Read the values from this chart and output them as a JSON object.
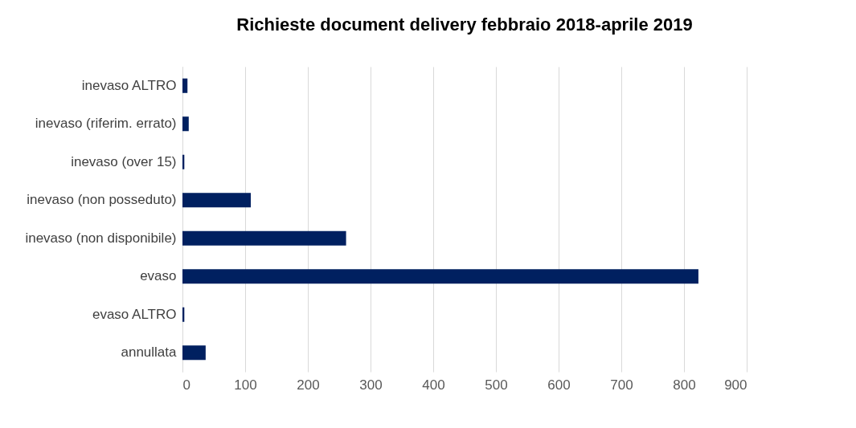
{
  "chart_data": {
    "type": "bar",
    "orientation": "horizontal",
    "title": "Richieste document delivery febbraio 2018-aprile 2019",
    "categories": [
      "inevaso ALTRO",
      "inevaso (riferim. errato)",
      "inevaso (over 15)",
      "inevaso (non posseduto)",
      "inevaso (non disponibile)",
      "evaso",
      "evaso ALTRO",
      "annullata"
    ],
    "values": [
      8,
      10,
      3,
      109,
      261,
      823,
      3,
      37
    ],
    "color": "#002060",
    "xlim": [
      0,
      900
    ],
    "xticks": [
      0,
      100,
      200,
      300,
      400,
      500,
      600,
      700,
      800,
      900
    ],
    "grid": "x"
  }
}
